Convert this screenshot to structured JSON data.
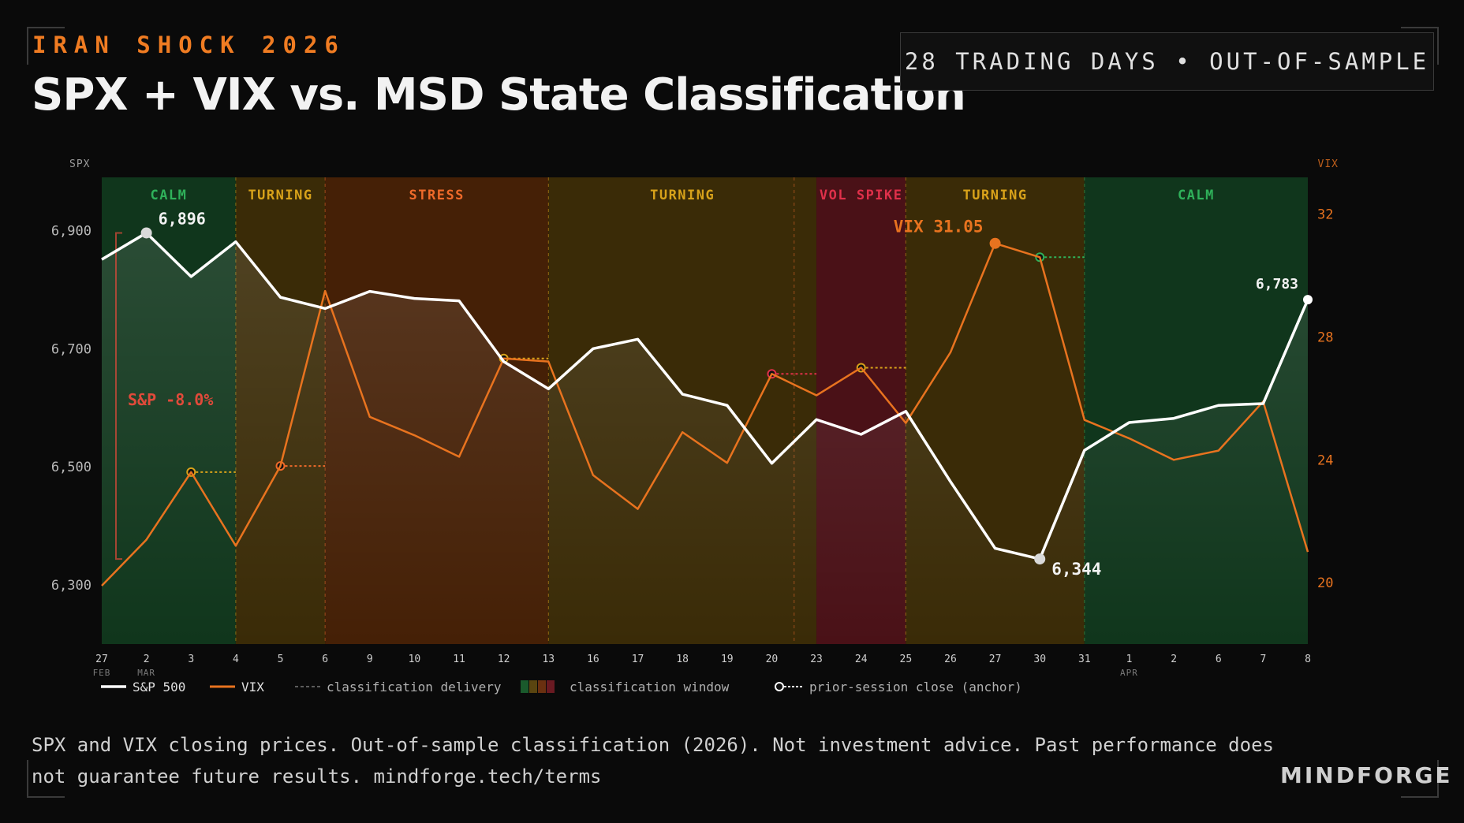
{
  "header": {
    "eyebrow": "IRAN SHOCK 2026",
    "title": "SPX + VIX vs. MSD State Classification",
    "badge": "28 TRADING DAYS • OUT-OF-SAMPLE"
  },
  "footer": {
    "note_line1": "SPX and VIX closing prices. Out-of-sample classification (2026). Not investment advice. Past performance does",
    "note_line2": "not guarantee future results. mindforge.tech/terms",
    "brand": "MINDFORGE"
  },
  "colors": {
    "calm": "#10361c",
    "turning": "#3a2b07",
    "stress": "#452006",
    "vol_spike": "#4a1117",
    "calm_text": "#2fb15a",
    "turning_text": "#d8a21a",
    "stress_text": "#ef6a2a",
    "vol_spike_text": "#e0304a",
    "spx": "#ffffff",
    "vix": "#e8731f",
    "drawdown": "#e14a3a"
  },
  "chart_data": {
    "type": "line",
    "x": [
      "27",
      "2",
      "3",
      "4",
      "5",
      "6",
      "9",
      "10",
      "11",
      "12",
      "13",
      "16",
      "17",
      "18",
      "19",
      "20",
      "23",
      "24",
      "25",
      "26",
      "27",
      "30",
      "31",
      "1",
      "2",
      "6",
      "7",
      "8"
    ],
    "month_labels": [
      {
        "index": 0,
        "text": "FEB"
      },
      {
        "index": 1,
        "text": "MAR"
      },
      {
        "index": 23,
        "text": "APR"
      }
    ],
    "series": [
      {
        "name": "S&P 500",
        "axis": "left",
        "values": [
          6851,
          6896,
          6822,
          6881,
          6787,
          6768,
          6797,
          6785,
          6781,
          6678,
          6632,
          6700,
          6716,
          6623,
          6604,
          6506,
          6580,
          6555,
          6594,
          6475,
          6362,
          6344,
          6528,
          6575,
          6582,
          6604,
          6607,
          6783
        ]
      },
      {
        "name": "VIX",
        "axis": "right",
        "values": [
          19.9,
          21.4,
          23.6,
          21.2,
          23.8,
          29.5,
          25.4,
          24.8,
          24.1,
          27.3,
          27.2,
          23.5,
          22.4,
          24.9,
          23.9,
          26.8,
          26.1,
          27.0,
          25.2,
          27.5,
          31.05,
          30.6,
          25.3,
          24.7,
          24.0,
          24.3,
          25.9,
          21.0
        ]
      }
    ],
    "left_axis": {
      "label": "SPX",
      "ylim": [
        6200,
        6990
      ],
      "ticks": [
        "6,300",
        "6,500",
        "6,700",
        "6,900"
      ],
      "tick_values": [
        6300,
        6500,
        6700,
        6900
      ]
    },
    "right_axis": {
      "label": "VIX",
      "ylim": [
        18.0,
        33.2
      ],
      "ticks": [
        "20",
        "24",
        "28",
        "32"
      ],
      "tick_values": [
        20,
        24,
        28,
        32
      ]
    },
    "regimes": [
      {
        "label": "CALM",
        "kind": "calm",
        "from": 0,
        "to": 3
      },
      {
        "label": "TURNING",
        "kind": "turning",
        "from": 3,
        "to": 5
      },
      {
        "label": "STRESS",
        "kind": "stress",
        "from": 5,
        "to": 10
      },
      {
        "label": "TURNING",
        "kind": "turning",
        "from": 10,
        "to": 16
      },
      {
        "label": "VOL SPIKE",
        "kind": "vol_spike",
        "from": 16,
        "to": 18
      },
      {
        "label": "TURNING",
        "kind": "turning",
        "from": 18,
        "to": 22
      },
      {
        "label": "CALM",
        "kind": "calm",
        "from": 22,
        "to": 27
      }
    ],
    "annotations": {
      "spx_high": {
        "index": 1,
        "text": "6,896"
      },
      "spx_low": {
        "index": 21,
        "text": "6,344"
      },
      "spx_last": {
        "index": 27,
        "text": "6,783"
      },
      "vix_peak": {
        "index": 20,
        "text": "VIX 31.05"
      },
      "drawdown": {
        "text": "S&P -8.0%"
      }
    },
    "anchors": [
      {
        "index": 2,
        "to": 3,
        "kind": "turning"
      },
      {
        "index": 4,
        "to": 5,
        "kind": "stress"
      },
      {
        "index": 9,
        "to": 10,
        "kind": "turning"
      },
      {
        "index": 15,
        "to": 16,
        "kind": "vol_spike"
      },
      {
        "index": 17,
        "to": 18,
        "kind": "turning"
      },
      {
        "index": 21,
        "to": 22,
        "kind": "calm"
      }
    ],
    "legend": {
      "spx": "S&P 500",
      "vix": "VIX",
      "delivery": "classification delivery",
      "window": "classification window",
      "anchor": "prior-session close (anchor)"
    }
  }
}
